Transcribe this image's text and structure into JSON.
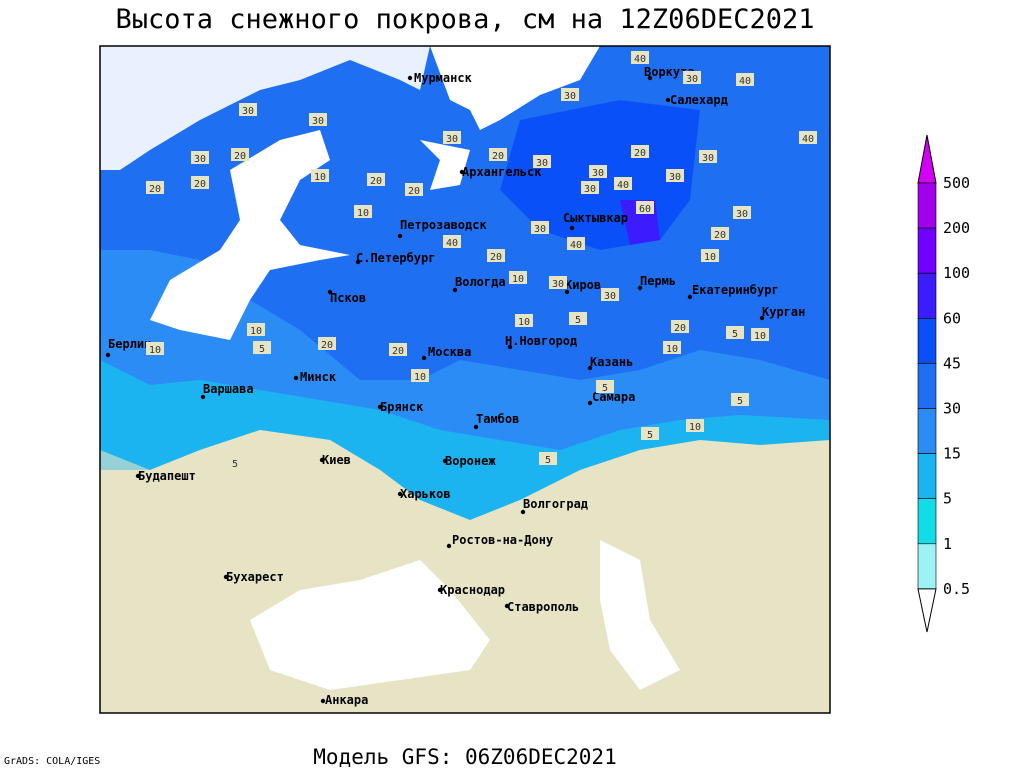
{
  "title": "Высота снежного покрова, см на 12Z06DEC2021",
  "footer": "Модель GFS: 06Z06DEC2021",
  "credit": "GrADS: COLA/IGES",
  "cities": [
    "Мурманск",
    "Воркута",
    "Салехард",
    "Архангельск",
    "Сыктывкар",
    "Петрозаводск",
    "С.Петербург",
    "Псков",
    "Вологда",
    "Киров",
    "Пермь",
    "Екатеринбург",
    "Курган",
    "Берлин",
    "Н.Новгород",
    "Москва",
    "Казань",
    "Варшава",
    "Минск",
    "Брянск",
    "Самара",
    "Тамбов",
    "Киев",
    "Воронеж",
    "Будапешт",
    "Харьков",
    "Волгоград",
    "Ростов-на-Дону",
    "Бухарест",
    "Краснодар",
    "Ставрополь",
    "Анкара"
  ],
  "contour_labels": [
    40,
    40,
    30,
    30,
    30,
    30,
    20,
    30,
    20,
    30,
    40,
    30,
    20,
    20,
    10,
    20,
    20,
    20,
    30,
    40,
    30,
    30,
    10,
    40,
    30,
    40,
    60,
    30,
    20,
    10,
    30,
    30,
    30,
    20,
    10,
    20,
    20,
    10,
    5,
    20,
    10,
    5,
    10,
    10,
    5,
    10,
    5,
    5,
    5,
    10,
    5,
    10,
    5
  ],
  "colorbar": {
    "labels": [
      "500",
      "200",
      "100",
      "60",
      "45",
      "30",
      "15",
      "5",
      "1",
      "0.5"
    ],
    "colors": [
      "#d200f5",
      "#a000ec",
      "#7000ff",
      "#3c1cff",
      "#0a50f8",
      "#1f6ff2",
      "#2c8cf6",
      "#1cb4f0",
      "#12dce6",
      "#9ef2f6",
      "#ffffff"
    ]
  }
}
